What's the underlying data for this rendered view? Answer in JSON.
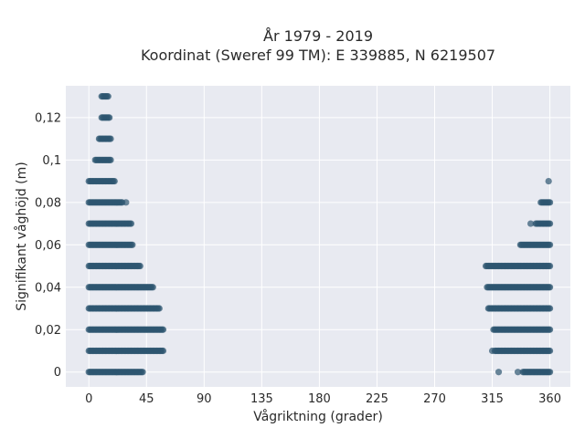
{
  "chart_data": {
    "type": "scatter",
    "title_line1": "År 1979 - 2019",
    "title_line2": "Koordinat (Sweref 99 TM): E 339885, N 6219507",
    "xlabel": "Vågriktning (grader)",
    "ylabel": "Signifikant våghöjd (m)",
    "xlim": [
      -18,
      376
    ],
    "ylim": [
      -0.007,
      0.135
    ],
    "x_ticks": [
      0,
      45,
      90,
      135,
      180,
      225,
      270,
      315,
      360
    ],
    "x_tick_labels": [
      "0",
      "45",
      "90",
      "135",
      "180",
      "225",
      "270",
      "315",
      "360"
    ],
    "y_ticks": [
      0,
      0.02,
      0.04,
      0.06,
      0.08,
      0.1,
      0.12
    ],
    "y_tick_labels": [
      "0",
      "0,02",
      "0,04",
      "0,06",
      "0,08",
      "0,1",
      "0,12"
    ],
    "grid": true,
    "point_color": "#2e5570",
    "background_color": "#e8eaf1",
    "bands": [
      {
        "y": 0.13,
        "x_ranges": [
          [
            10,
            15
          ]
        ]
      },
      {
        "y": 0.12,
        "x_ranges": [
          [
            10,
            16
          ]
        ]
      },
      {
        "y": 0.11,
        "x_ranges": [
          [
            8,
            17
          ]
        ]
      },
      {
        "y": 0.1,
        "x_ranges": [
          [
            5,
            17
          ]
        ]
      },
      {
        "y": 0.09,
        "x_ranges": [
          [
            0,
            20
          ]
        ],
        "extra_points": [
          359
        ]
      },
      {
        "y": 0.08,
        "x_ranges": [
          [
            0,
            26
          ],
          [
            353,
            360
          ]
        ],
        "extra_points": [
          29
        ]
      },
      {
        "y": 0.07,
        "x_ranges": [
          [
            0,
            33
          ],
          [
            349,
            360
          ]
        ],
        "extra_points": [
          345
        ]
      },
      {
        "y": 0.06,
        "x_ranges": [
          [
            0,
            34
          ],
          [
            337,
            360
          ]
        ]
      },
      {
        "y": 0.05,
        "x_ranges": [
          [
            0,
            40
          ],
          [
            310,
            360
          ]
        ]
      },
      {
        "y": 0.04,
        "x_ranges": [
          [
            0,
            50
          ],
          [
            311,
            360
          ]
        ]
      },
      {
        "y": 0.03,
        "x_ranges": [
          [
            0,
            55
          ],
          [
            312,
            360
          ]
        ]
      },
      {
        "y": 0.02,
        "x_ranges": [
          [
            0,
            58
          ],
          [
            316,
            360
          ]
        ]
      },
      {
        "y": 0.01,
        "x_ranges": [
          [
            0,
            58
          ],
          [
            317,
            360
          ]
        ],
        "extra_points": [
          315
        ]
      },
      {
        "y": 0.0,
        "x_ranges": [
          [
            0,
            42
          ],
          [
            339,
            360
          ]
        ],
        "extra_points": [
          320,
          335
        ]
      }
    ]
  }
}
